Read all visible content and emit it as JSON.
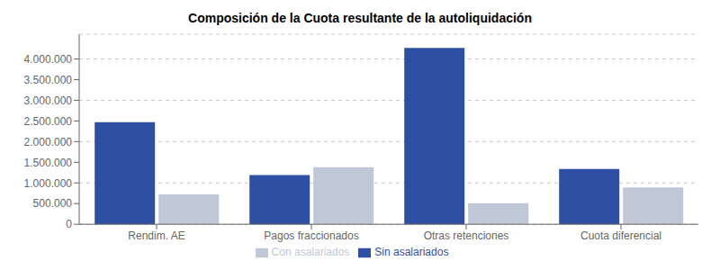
{
  "chart_data": {
    "type": "bar",
    "title": "Composición de la Cuota resultante de la autoliquidación",
    "categories": [
      "Rendim. AE",
      "Pagos fraccionados",
      "Otras retenciones",
      "Cuota diferencial"
    ],
    "series": [
      {
        "name": "Sin asalariados",
        "color": "#2e4fa3",
        "values": [
          2470000,
          1190000,
          4270000,
          1340000
        ]
      },
      {
        "name": "Con asalariados",
        "color": "#c0c8d8",
        "values": [
          720000,
          1380000,
          510000,
          890000
        ]
      }
    ],
    "ylim": [
      0,
      4600000
    ],
    "yticks": [
      0,
      {
        "value": 500000,
        "label": "500.000"
      },
      {
        "value": 1000000,
        "label": "1.000.000"
      },
      {
        "value": 1500000,
        "label": "1.500.000"
      },
      {
        "value": 2000000,
        "label": "2.000.000"
      },
      {
        "value": 2500000,
        "label": "2.500.000"
      },
      {
        "value": 3000000,
        "label": "3.000.000"
      },
      {
        "value": 3500000,
        "label": "3.500.000"
      },
      {
        "value": 4000000,
        "label": "4.000.000"
      }
    ],
    "grid": true,
    "legend": "bottom"
  }
}
